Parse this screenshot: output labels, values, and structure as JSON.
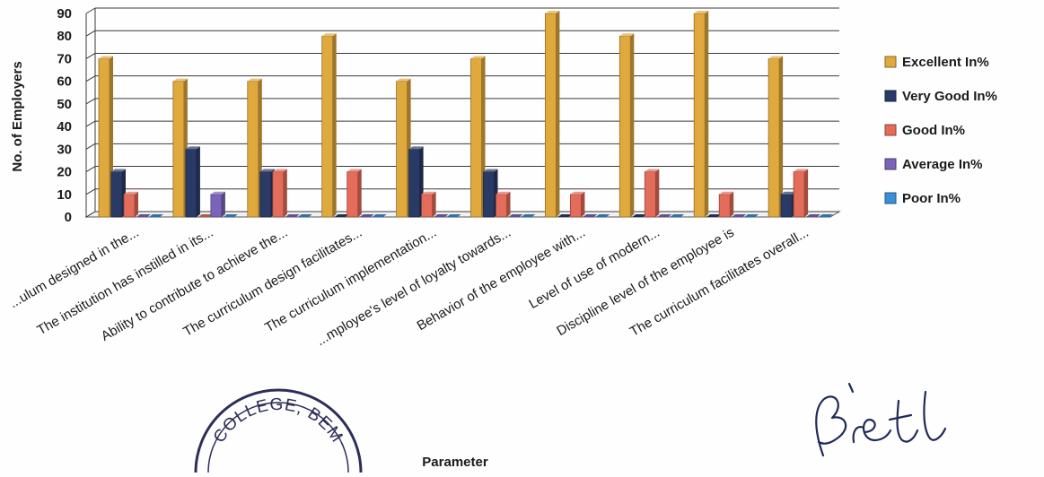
{
  "chart_data": {
    "type": "bar",
    "xlabel": "Parameter",
    "ylabel": "No. of Employers",
    "ylim": [
      0,
      90
    ],
    "yticks": [
      0,
      10,
      20,
      30,
      40,
      50,
      60,
      70,
      80,
      90
    ],
    "grid": true,
    "legend_position": "right",
    "categories": [
      "...ulum designed in the...",
      "The institution has instilled in its...",
      "Ability to contribute to achieve the...",
      "The curriculum design facilitates...",
      "The curriculum implementation...",
      "...mployee's level of loyalty towards...",
      "Behavior of the employee with...",
      "Level of use of modern...",
      "Discipline level of the employee is",
      "The curriculum facilitates overall..."
    ],
    "series": [
      {
        "name": "Excellent In%",
        "color": "#e0a93e",
        "values": [
          70,
          60,
          60,
          80,
          60,
          70,
          90,
          80,
          90,
          70
        ]
      },
      {
        "name": "Very Good In%",
        "color": "#2a3a66",
        "values": [
          20,
          30,
          20,
          0,
          30,
          20,
          0,
          0,
          0,
          10
        ]
      },
      {
        "name": "Good In%",
        "color": "#e46c5a",
        "values": [
          10,
          0,
          20,
          20,
          10,
          10,
          10,
          20,
          10,
          20
        ]
      },
      {
        "name": "Average In%",
        "color": "#7b64b8",
        "values": [
          0,
          10,
          0,
          0,
          0,
          0,
          0,
          0,
          0,
          0
        ]
      },
      {
        "name": "Poor In%",
        "color": "#3b8fd6",
        "values": [
          0,
          0,
          0,
          0,
          0,
          0,
          0,
          0,
          0,
          0
        ]
      }
    ]
  },
  "seal": {
    "text": "COLLEGE, BEM"
  },
  "signature": {
    "text": "Brett"
  }
}
